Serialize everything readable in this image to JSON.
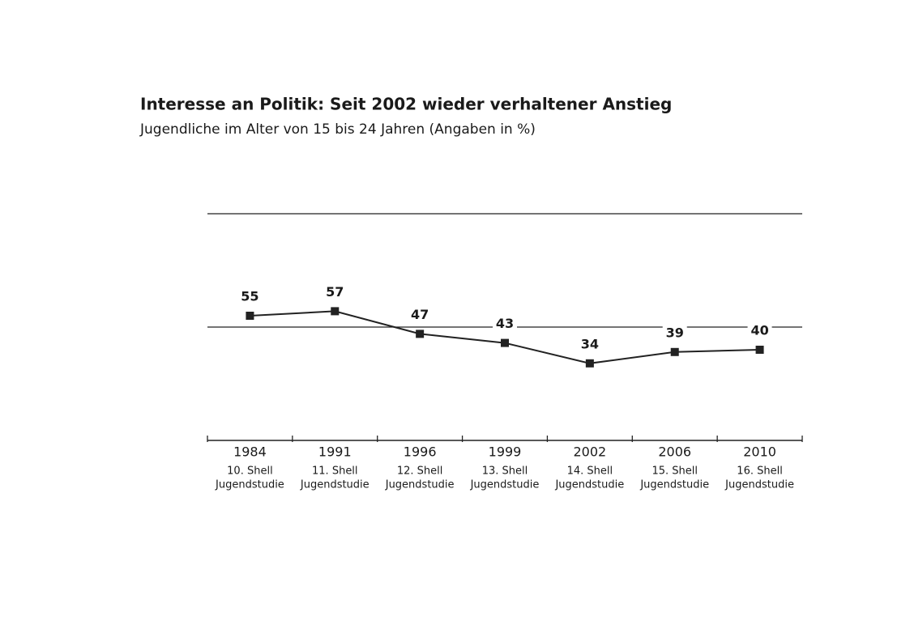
{
  "chart_data": {
    "type": "line",
    "title": "Interesse an Politik: Seit 2002 wieder verhaltener Anstieg",
    "subtitle": "Jugendliche im Alter von 15 bis 24 Jahren (Angaben in %)",
    "categories": [
      "1984",
      "1991",
      "1996",
      "1999",
      "2002",
      "2006",
      "2010"
    ],
    "category_notes": [
      [
        "10. Shell",
        "Jugendstudie"
      ],
      [
        "11. Shell",
        "Jugendstudie"
      ],
      [
        "12. Shell",
        "Jugendstudie"
      ],
      [
        "13. Shell",
        "Jugendstudie"
      ],
      [
        "14. Shell",
        "Jugendstudie"
      ],
      [
        "15. Shell",
        "Jugendstudie"
      ],
      [
        "16. Shell",
        "Jugendstudie"
      ]
    ],
    "values": [
      55,
      57,
      47,
      43,
      34,
      39,
      40
    ],
    "color": "#222222",
    "ylim": [
      0,
      100
    ],
    "gridlines": [
      50,
      100
    ]
  }
}
